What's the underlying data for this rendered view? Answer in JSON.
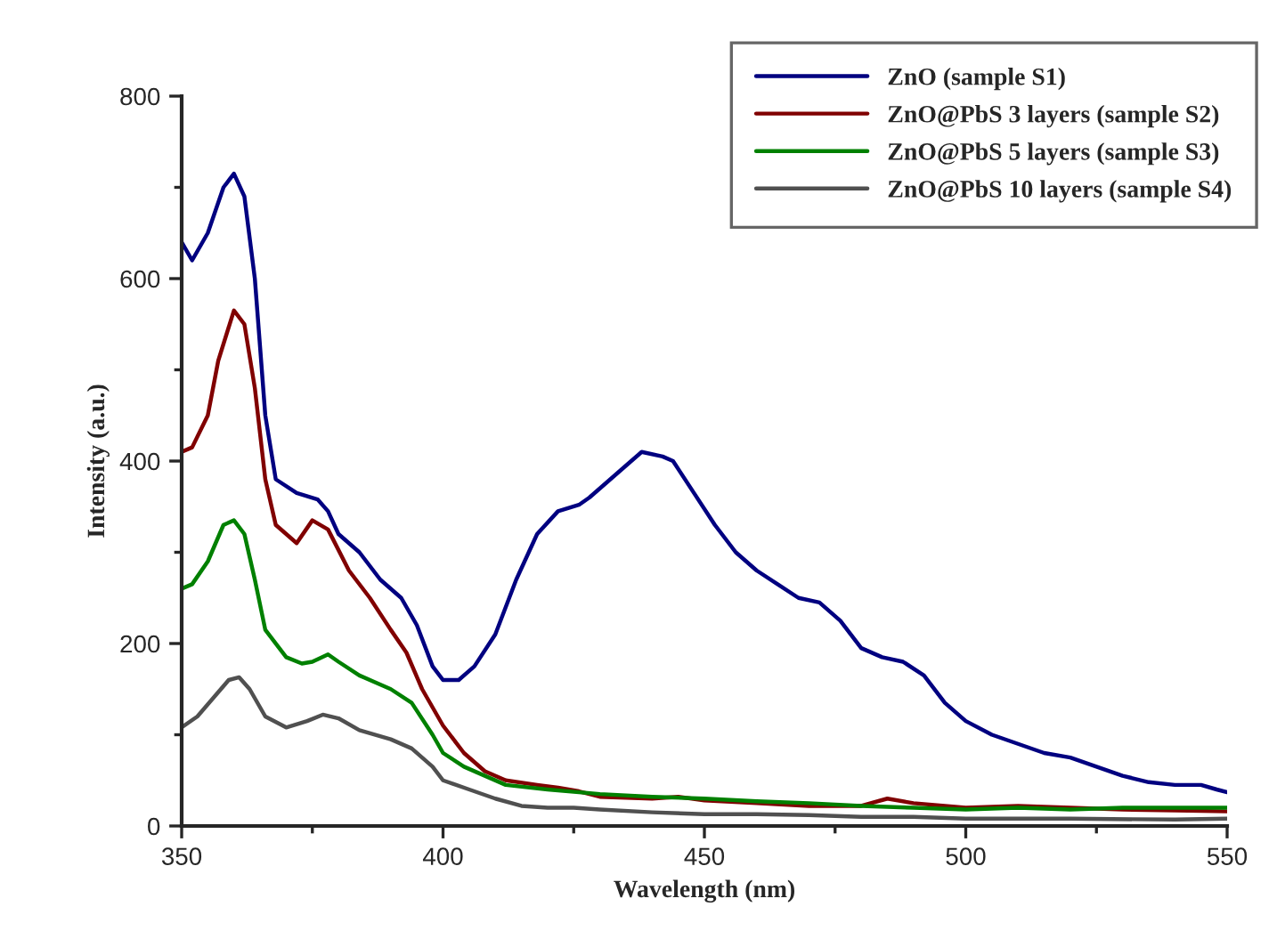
{
  "chart_data": {
    "type": "line",
    "xlabel": "Wavelength (nm)",
    "ylabel": "Intensity (a.u.)",
    "xlim": [
      350,
      550
    ],
    "ylim": [
      0,
      800
    ],
    "xticks": [
      350,
      {
        "value": 375,
        "label": null
      },
      400,
      {
        "value": 425,
        "label": null
      },
      450,
      {
        "value": 475,
        "label": null
      },
      500,
      {
        "value": 525,
        "label": null
      },
      550
    ],
    "yticks": [
      0,
      {
        "value": 100,
        "label": null
      },
      200,
      {
        "value": 300,
        "label": null
      },
      400,
      {
        "value": 500,
        "label": null
      },
      600,
      {
        "value": 700,
        "label": null
      },
      800
    ],
    "grid": false,
    "legend": "top right",
    "marker": "none",
    "line_style": "solid",
    "series": [
      {
        "name": "ZnO (sample S1)",
        "color": "#000080",
        "x": [
          350,
          352,
          355,
          358,
          360,
          362,
          364,
          366,
          368,
          372,
          376,
          378,
          380,
          384,
          388,
          392,
          395,
          398,
          400,
          403,
          406,
          410,
          414,
          418,
          422,
          426,
          428,
          432,
          436,
          438,
          442,
          444,
          448,
          452,
          456,
          460,
          464,
          468,
          472,
          476,
          480,
          484,
          488,
          492,
          496,
          500,
          505,
          510,
          515,
          520,
          525,
          530,
          535,
          540,
          545,
          548,
          550
        ],
        "values": [
          640,
          620,
          650,
          700,
          715,
          690,
          600,
          450,
          380,
          365,
          358,
          345,
          320,
          300,
          270,
          250,
          220,
          175,
          160,
          160,
          175,
          210,
          270,
          320,
          345,
          352,
          360,
          380,
          400,
          410,
          405,
          400,
          365,
          330,
          300,
          280,
          265,
          250,
          245,
          225,
          195,
          185,
          180,
          165,
          135,
          115,
          100,
          90,
          80,
          75,
          65,
          55,
          48,
          45,
          45,
          40,
          37
        ]
      },
      {
        "name": "ZnO@PbS 3 layers (sample S2)",
        "color": "#800000",
        "x": [
          350,
          352,
          355,
          357,
          360,
          362,
          364,
          366,
          368,
          372,
          375,
          378,
          382,
          386,
          390,
          393,
          396,
          400,
          404,
          408,
          412,
          418,
          422,
          426,
          430,
          440,
          445,
          450,
          460,
          470,
          480,
          485,
          490,
          500,
          510,
          520,
          530,
          540,
          550
        ],
        "values": [
          410,
          415,
          450,
          510,
          565,
          550,
          480,
          380,
          330,
          310,
          335,
          325,
          280,
          250,
          215,
          190,
          150,
          110,
          80,
          60,
          50,
          45,
          42,
          38,
          32,
          30,
          32,
          28,
          25,
          22,
          22,
          30,
          25,
          20,
          22,
          20,
          18,
          17,
          16
        ]
      },
      {
        "name": "ZnO@PbS 5 layers (sample S3)",
        "color": "#008000",
        "x": [
          350,
          352,
          355,
          358,
          360,
          362,
          364,
          366,
          370,
          373,
          375,
          378,
          380,
          384,
          390,
          394,
          398,
          400,
          404,
          408,
          412,
          420,
          430,
          440,
          450,
          460,
          470,
          480,
          490,
          500,
          510,
          520,
          530,
          540,
          550
        ],
        "values": [
          260,
          265,
          290,
          330,
          335,
          320,
          270,
          215,
          185,
          178,
          180,
          188,
          180,
          165,
          150,
          135,
          100,
          80,
          65,
          55,
          45,
          40,
          35,
          32,
          30,
          27,
          25,
          22,
          20,
          18,
          20,
          18,
          20,
          20,
          20
        ]
      },
      {
        "name": "ZnO@PbS 10 layers (sample S4)",
        "color": "#505050",
        "x": [
          350,
          353,
          356,
          359,
          361,
          363,
          366,
          370,
          374,
          377,
          380,
          384,
          390,
          394,
          398,
          400,
          405,
          410,
          415,
          420,
          425,
          430,
          440,
          450,
          460,
          470,
          480,
          490,
          500,
          520,
          540,
          550
        ],
        "values": [
          108,
          120,
          140,
          160,
          163,
          150,
          120,
          108,
          115,
          122,
          118,
          105,
          95,
          85,
          65,
          50,
          40,
          30,
          22,
          20,
          20,
          18,
          15,
          13,
          13,
          12,
          10,
          10,
          8,
          8,
          7,
          8
        ]
      }
    ]
  }
}
